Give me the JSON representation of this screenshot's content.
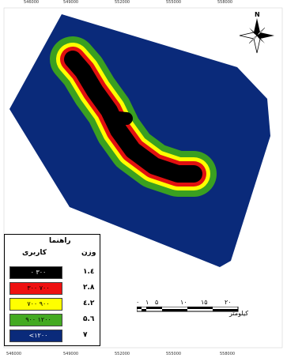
{
  "map": {
    "top_ticks": [
      "546000",
      "549000",
      "552000",
      "555000",
      "558000"
    ],
    "bottom_ticks": [
      "546000",
      "549000",
      "552000",
      "555000",
      "558000"
    ],
    "colors": {
      "background_zone": "#0a2a7a",
      "green": "#3aa020",
      "yellow": "#ffff00",
      "red": "#e01010",
      "black": "#000000"
    }
  },
  "legend": {
    "title": "راهنما",
    "col_usage": "کاربری",
    "col_weight": "وزن",
    "items": [
      {
        "range": "۰  ۳۰۰",
        "weight": "۱.٤",
        "color": "#000000"
      },
      {
        "range": "۳۰۰  ۷۰۰",
        "weight": "۲.۸",
        "color": "#ee1111"
      },
      {
        "range": "۷۰۰  ۹۰۰",
        "weight": "٤.۲",
        "color": "#ffff00"
      },
      {
        "range": "۹۰۰  ۱۲۰۰",
        "weight": "۵.٦",
        "color": "#44aa22"
      },
      {
        "range": "<۱۲۰۰",
        "weight": "۷",
        "color": "#0a2a7a"
      }
    ]
  },
  "scale": {
    "numbers": [
      "۰",
      "۱",
      "۵",
      "۱۰",
      "۱۵",
      "۲۰"
    ],
    "unit": "کیلومتر"
  },
  "north_arrow": {
    "label": "N"
  }
}
